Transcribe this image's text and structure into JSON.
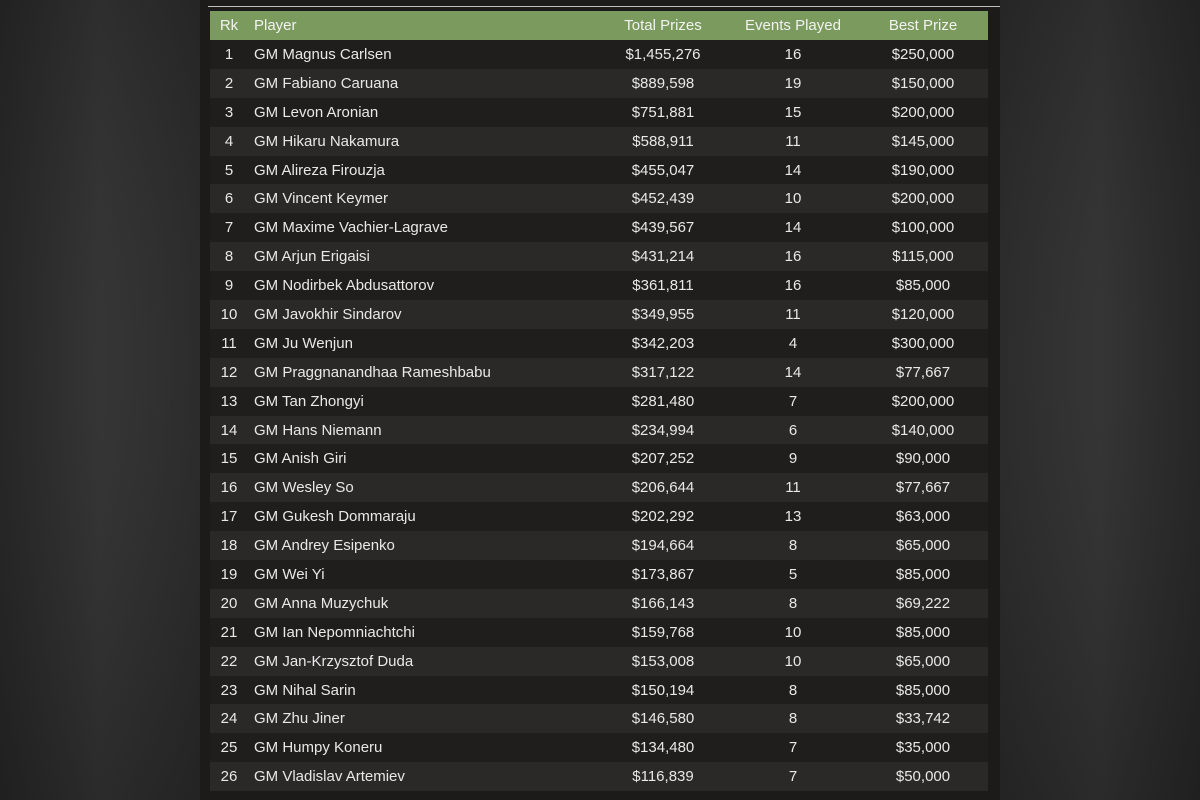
{
  "table": {
    "headers": {
      "rank": "Rk",
      "player": "Player",
      "total_prizes": "Total Prizes",
      "events_played": "Events Played",
      "best_prize": "Best Prize"
    },
    "rows": [
      {
        "rank": "1",
        "player": "GM Magnus Carlsen",
        "total": "$1,455,276",
        "events": "16",
        "best": "$250,000"
      },
      {
        "rank": "2",
        "player": "GM Fabiano Caruana",
        "total": "$889,598",
        "events": "19",
        "best": "$150,000"
      },
      {
        "rank": "3",
        "player": "GM Levon Aronian",
        "total": "$751,881",
        "events": "15",
        "best": "$200,000"
      },
      {
        "rank": "4",
        "player": "GM Hikaru Nakamura",
        "total": "$588,911",
        "events": "11",
        "best": "$145,000"
      },
      {
        "rank": "5",
        "player": "GM Alireza Firouzja",
        "total": "$455,047",
        "events": "14",
        "best": "$190,000"
      },
      {
        "rank": "6",
        "player": "GM Vincent Keymer",
        "total": "$452,439",
        "events": "10",
        "best": "$200,000"
      },
      {
        "rank": "7",
        "player": "GM Maxime Vachier-Lagrave",
        "total": "$439,567",
        "events": "14",
        "best": "$100,000"
      },
      {
        "rank": "8",
        "player": "GM Arjun Erigaisi",
        "total": "$431,214",
        "events": "16",
        "best": "$115,000"
      },
      {
        "rank": "9",
        "player": "GM Nodirbek Abdusattorov",
        "total": "$361,811",
        "events": "16",
        "best": "$85,000"
      },
      {
        "rank": "10",
        "player": "GM Javokhir Sindarov",
        "total": "$349,955",
        "events": "11",
        "best": "$120,000"
      },
      {
        "rank": "11",
        "player": "GM Ju Wenjun",
        "total": "$342,203",
        "events": "4",
        "best": "$300,000"
      },
      {
        "rank": "12",
        "player": "GM Praggnanandhaa Rameshbabu",
        "total": "$317,122",
        "events": "14",
        "best": "$77,667"
      },
      {
        "rank": "13",
        "player": "GM Tan Zhongyi",
        "total": "$281,480",
        "events": "7",
        "best": "$200,000"
      },
      {
        "rank": "14",
        "player": "GM Hans Niemann",
        "total": "$234,994",
        "events": "6",
        "best": "$140,000"
      },
      {
        "rank": "15",
        "player": "GM Anish Giri",
        "total": "$207,252",
        "events": "9",
        "best": "$90,000"
      },
      {
        "rank": "16",
        "player": "GM Wesley So",
        "total": "$206,644",
        "events": "11",
        "best": "$77,667"
      },
      {
        "rank": "17",
        "player": "GM Gukesh Dommaraju",
        "total": "$202,292",
        "events": "13",
        "best": "$63,000"
      },
      {
        "rank": "18",
        "player": "GM Andrey Esipenko",
        "total": "$194,664",
        "events": "8",
        "best": "$65,000"
      },
      {
        "rank": "19",
        "player": "GM Wei Yi",
        "total": "$173,867",
        "events": "5",
        "best": "$85,000"
      },
      {
        "rank": "20",
        "player": "GM Anna Muzychuk",
        "total": "$166,143",
        "events": "8",
        "best": "$69,222"
      },
      {
        "rank": "21",
        "player": "GM Ian Nepomniachtchi",
        "total": "$159,768",
        "events": "10",
        "best": "$85,000"
      },
      {
        "rank": "22",
        "player": "GM Jan-Krzysztof Duda",
        "total": "$153,008",
        "events": "10",
        "best": "$65,000"
      },
      {
        "rank": "23",
        "player": "GM Nihal Sarin",
        "total": "$150,194",
        "events": "8",
        "best": "$85,000"
      },
      {
        "rank": "24",
        "player": "GM Zhu Jiner",
        "total": "$146,580",
        "events": "8",
        "best": "$33,742"
      },
      {
        "rank": "25",
        "player": "GM Humpy Koneru",
        "total": "$134,480",
        "events": "7",
        "best": "$35,000"
      },
      {
        "rank": "26",
        "player": "GM Vladislav Artemiev",
        "total": "$116,839",
        "events": "7",
        "best": "$50,000"
      }
    ]
  },
  "colors": {
    "header_bg": "#7b9a5d",
    "row_dark": "#1f1e1d",
    "row_light": "#2a2928"
  }
}
